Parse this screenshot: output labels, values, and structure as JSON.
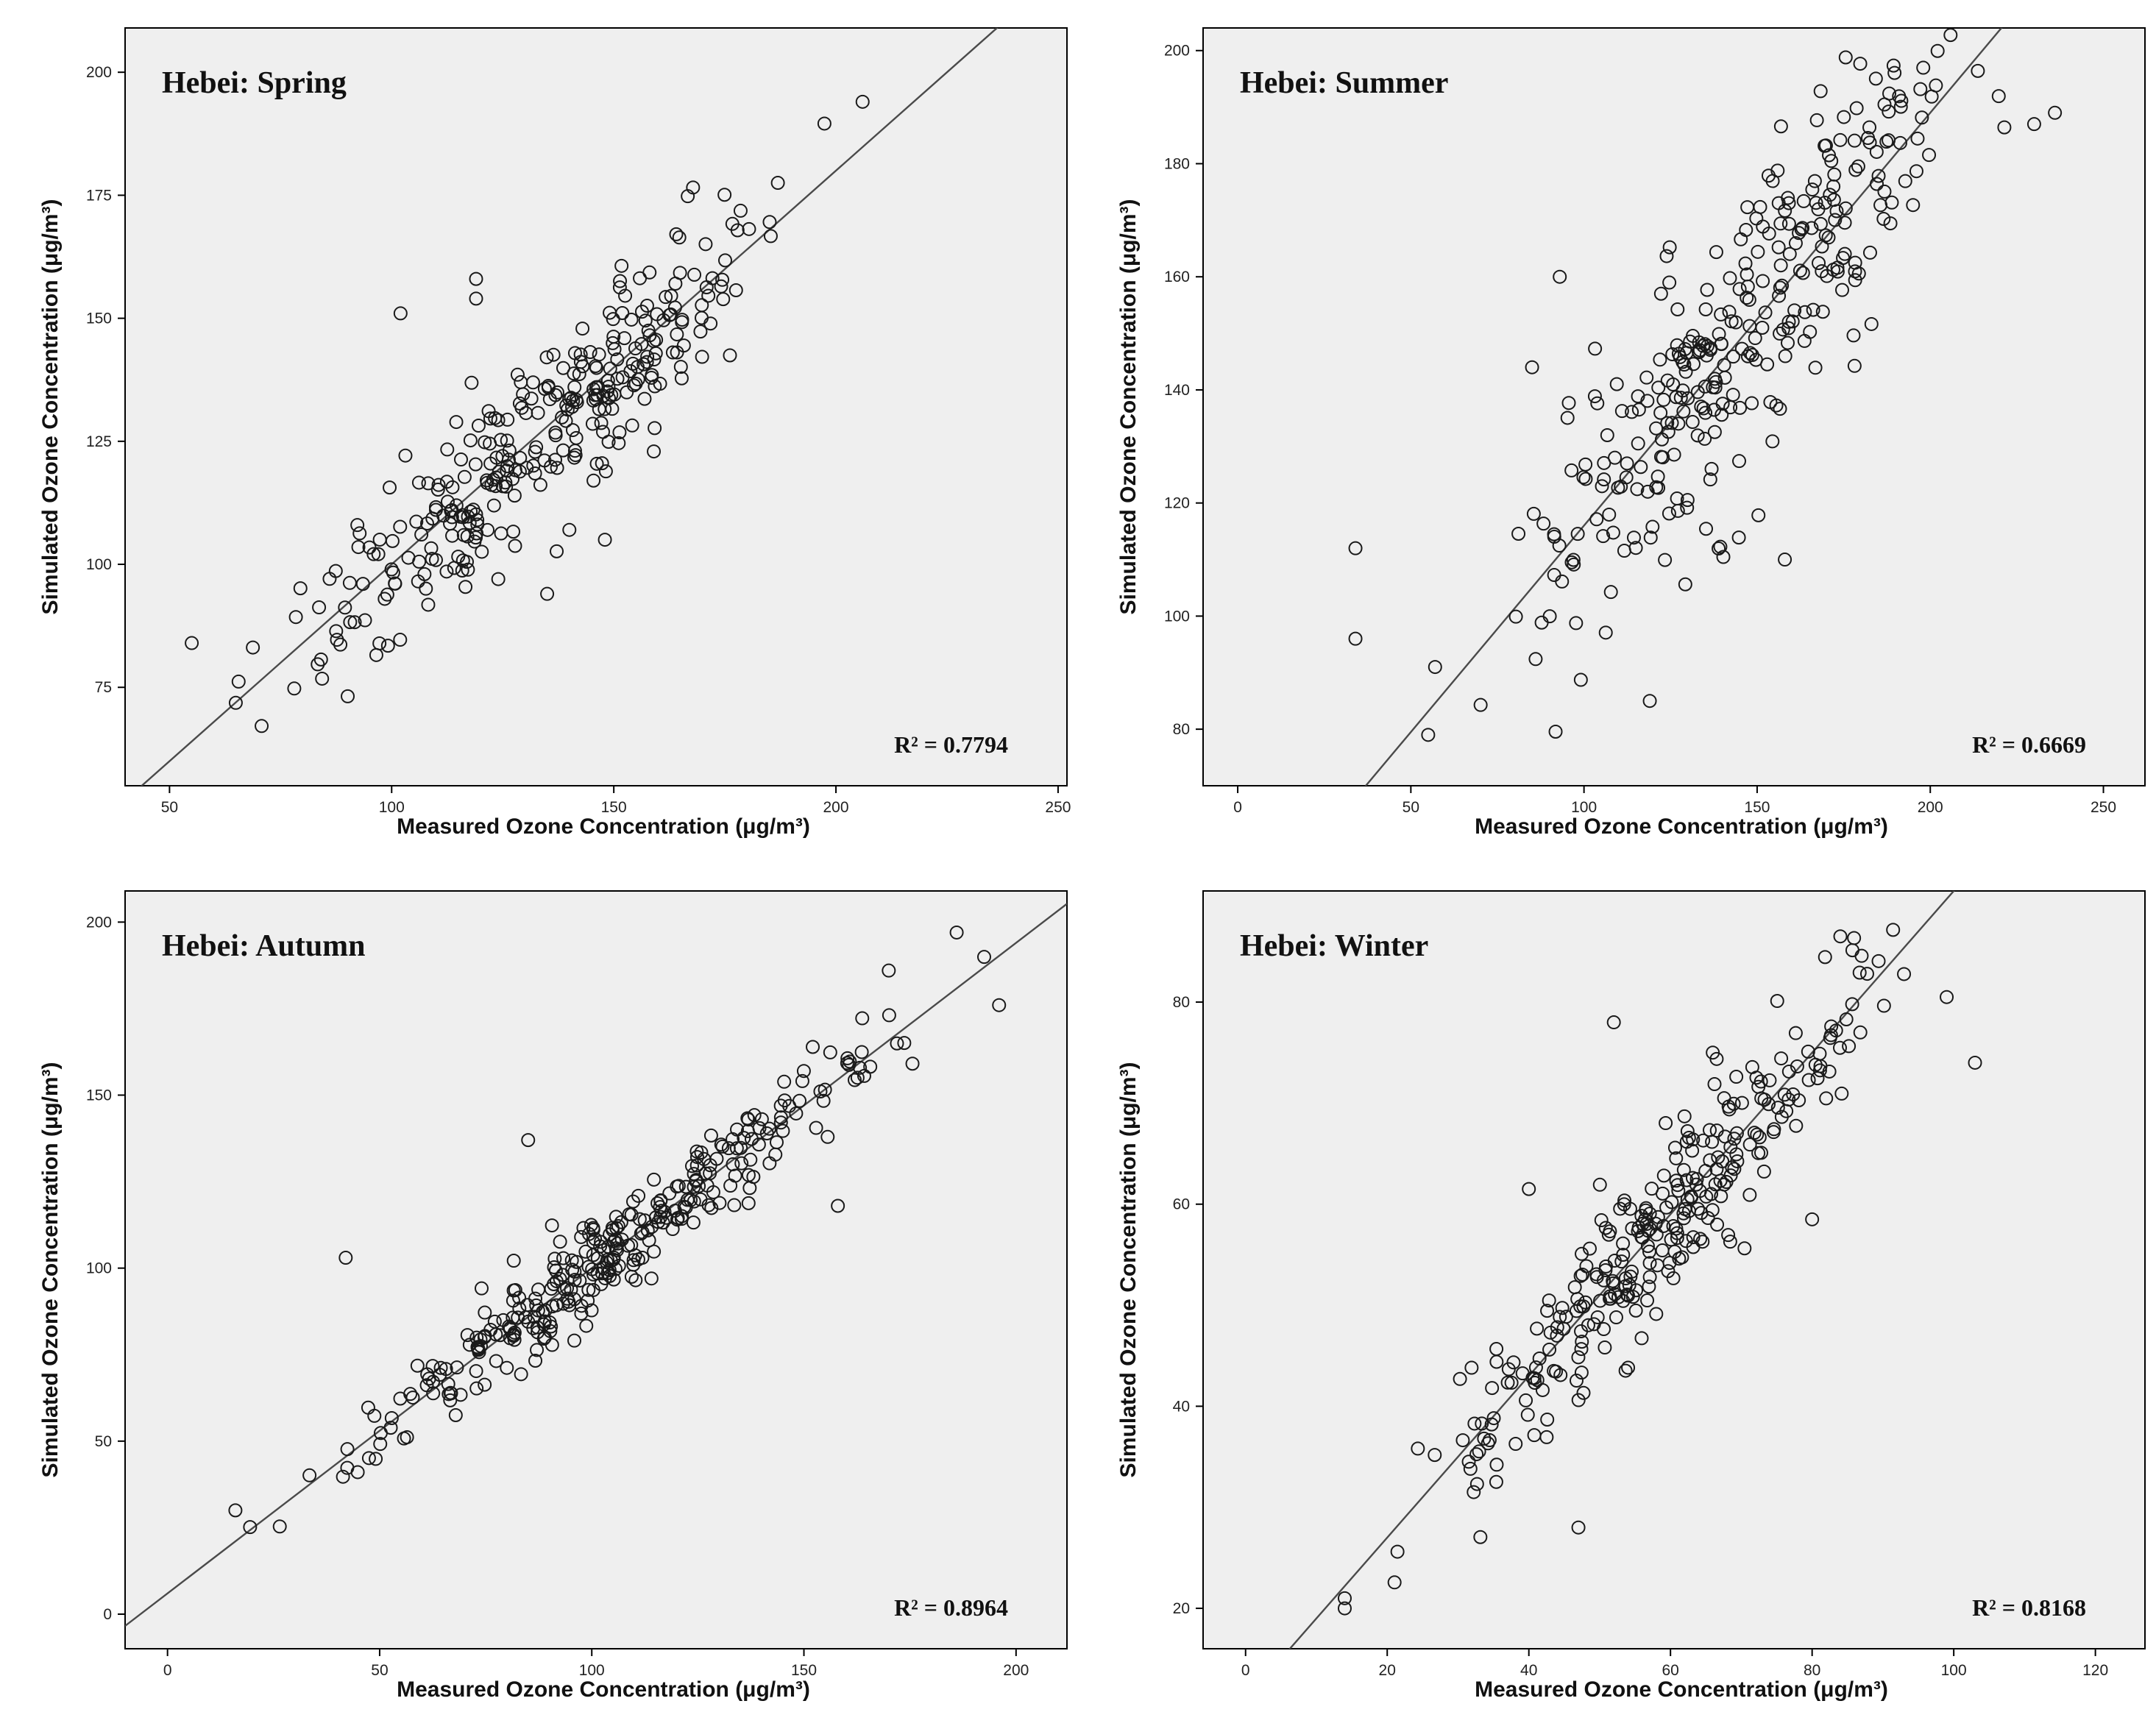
{
  "figure": "Hebei seasonal ozone scatter plots",
  "chart_data": [
    {
      "type": "scatter",
      "title": "Hebei: Spring",
      "xlabel": "Measured Ozone Concentration (μg/m³)",
      "ylabel": "Simulated Ozone Concentration (μg/m³)",
      "xlim": [
        40,
        252
      ],
      "ylim": [
        55,
        209
      ],
      "xticks": [
        "50",
        "100",
        "150",
        "200",
        "250"
      ],
      "yticks": [
        "75",
        "100",
        "125",
        "150",
        "175",
        "200"
      ],
      "r2": "R² = 0.7794",
      "fit": {
        "slope": 0.8,
        "intercept": 20
      },
      "seed": 11,
      "npoints": 320,
      "xrange": [
        55,
        208
      ],
      "noise": 9,
      "ymin_clip": 63,
      "outliers": [
        [
          102,
          151
        ],
        [
          119,
          158
        ],
        [
          119,
          154
        ],
        [
          135,
          94
        ],
        [
          148,
          105
        ],
        [
          140,
          107
        ],
        [
          124,
          97
        ],
        [
          55,
          84
        ],
        [
          206,
          194
        ]
      ]
    },
    {
      "type": "scatter",
      "title": "Hebei: Summer",
      "xlabel": "Measured Ozone Concentration (μg/m³)",
      "ylabel": "Simulated Ozone Concentration (μg/m³)",
      "xlim": [
        -10,
        262
      ],
      "ylim": [
        70,
        204
      ],
      "xticks": [
        "0",
        "50",
        "100",
        "150",
        "200",
        "250"
      ],
      "yticks": [
        "80",
        "100",
        "120",
        "140",
        "160",
        "180",
        "200"
      ],
      "r2": "R² = 0.6669",
      "fit": {
        "slope": 0.73,
        "intercept": 43
      },
      "seed": 23,
      "npoints": 320,
      "xrange": [
        55,
        238
      ],
      "noise": 12,
      "ymin_clip": 78,
      "outliers": [
        [
          34,
          112
        ],
        [
          34,
          96
        ],
        [
          93,
          160
        ],
        [
          85,
          144
        ],
        [
          158,
          110
        ],
        [
          119,
          85
        ],
        [
          236,
          189
        ],
        [
          230,
          187
        ],
        [
          57,
          91
        ],
        [
          55,
          79
        ]
      ]
    },
    {
      "type": "scatter",
      "title": "Hebei: Autumn",
      "xlabel": "Measured Ozone Concentration (μg/m³)",
      "ylabel": "Simulated Ozone Concentration (μg/m³)",
      "xlim": [
        -10,
        212
      ],
      "ylim": [
        -10,
        209
      ],
      "xticks": [
        "0",
        "50",
        "100",
        "150",
        "200"
      ],
      "yticks": [
        "0",
        "50",
        "100",
        "150",
        "200"
      ],
      "r2": "R² = 0.8964",
      "fit": {
        "slope": 0.94,
        "intercept": 6
      },
      "seed": 37,
      "npoints": 320,
      "xrange": [
        16,
        196
      ],
      "noise": 7,
      "ymin_clip": 22,
      "outliers": [
        [
          42,
          103
        ],
        [
          85,
          137
        ],
        [
          186,
          197
        ],
        [
          196,
          176
        ],
        [
          170,
          186
        ],
        [
          158,
          118
        ],
        [
          16,
          30
        ]
      ]
    },
    {
      "type": "scatter",
      "title": "Hebei: Winter",
      "xlabel": "Measured Ozone Concentration (μg/m³)",
      "ylabel": "Simulated Ozone Concentration (μg/m³)",
      "xlim": [
        -6,
        127
      ],
      "ylim": [
        16,
        91
      ],
      "xticks": [
        "0",
        "20",
        "40",
        "60",
        "80",
        "100",
        "120"
      ],
      "yticks": [
        "20",
        "40",
        "60",
        "80"
      ],
      "r2": "R² = 0.8168",
      "fit": {
        "slope": 0.8,
        "intercept": 11
      },
      "seed": 53,
      "npoints": 300,
      "xrange": [
        14,
        103
      ],
      "noise": 4.5,
      "ymin_clip": 20,
      "outliers": [
        [
          14,
          20
        ],
        [
          14,
          21
        ],
        [
          40,
          61.5
        ],
        [
          52,
          78
        ],
        [
          99,
          80.5
        ],
        [
          103,
          74
        ],
        [
          80,
          58.5
        ],
        [
          47,
          28
        ]
      ]
    }
  ]
}
